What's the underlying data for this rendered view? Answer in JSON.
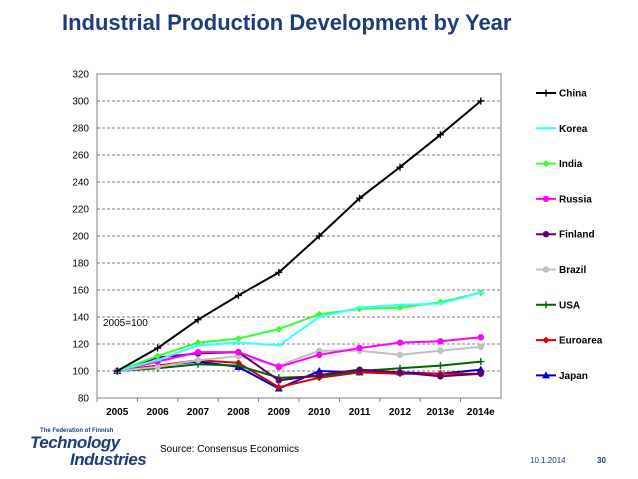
{
  "page": {
    "title": "Industrial Production Development by Year",
    "note": "2005=100",
    "source": "Source: Consensus Economics",
    "logo": {
      "line1": "The Federation of Finnish",
      "line2": "Technology",
      "line3": "Industries"
    },
    "date": "10.1.2014",
    "page_number": "30"
  },
  "chart_data": {
    "type": "line",
    "title": "Industrial Production Development by Year",
    "xlabel": "",
    "ylabel": "",
    "categories": [
      "2005",
      "2006",
      "2007",
      "2008",
      "2009",
      "2010",
      "2011",
      "2012",
      "2013e",
      "2014e"
    ],
    "ylim": [
      80,
      320
    ],
    "yticks": [
      80,
      100,
      120,
      140,
      160,
      180,
      200,
      220,
      240,
      260,
      280,
      300,
      320
    ],
    "grid": "horizontal dashed",
    "legend_position": "right",
    "series": [
      {
        "name": "China",
        "color": "#000000",
        "marker": "plus",
        "values": [
          100,
          117,
          138,
          156,
          173,
          200,
          228,
          251,
          275,
          300
        ]
      },
      {
        "name": "Korea",
        "color": "#33ffff",
        "marker": "dash",
        "values": [
          100,
          108,
          119,
          121,
          119,
          140,
          147,
          149,
          150,
          158
        ]
      },
      {
        "name": "India",
        "color": "#33ff33",
        "marker": "diamond",
        "values": [
          100,
          111,
          121,
          124,
          131,
          142,
          146,
          147,
          151,
          158
        ]
      },
      {
        "name": "Russia",
        "color": "#ff00ff",
        "marker": "circle",
        "values": [
          100,
          107,
          114,
          114,
          103,
          112,
          117,
          121,
          122,
          125
        ]
      },
      {
        "name": "Finland",
        "color": "#660066",
        "marker": "circle",
        "values": [
          100,
          110,
          113,
          114,
          93,
          97,
          101,
          99,
          96,
          98
        ]
      },
      {
        "name": "Brazil",
        "color": "#c0c0c0",
        "marker": "circle",
        "values": [
          100,
          103,
          108,
          111,
          104,
          115,
          115,
          112,
          115,
          118
        ]
      },
      {
        "name": "USA",
        "color": "#006600",
        "marker": "plus",
        "values": [
          100,
          102,
          105,
          104,
          95,
          96,
          100,
          102,
          104,
          107
        ]
      },
      {
        "name": "Euroarea",
        "color": "#dd0000",
        "marker": "diamond",
        "values": [
          100,
          104,
          108,
          106,
          88,
          95,
          99,
          98,
          98,
          98
        ]
      },
      {
        "name": "Japan",
        "color": "#0000cc",
        "marker": "triangle",
        "values": [
          100,
          104,
          107,
          103,
          87,
          100,
          99,
          99,
          98,
          101
        ]
      }
    ]
  }
}
